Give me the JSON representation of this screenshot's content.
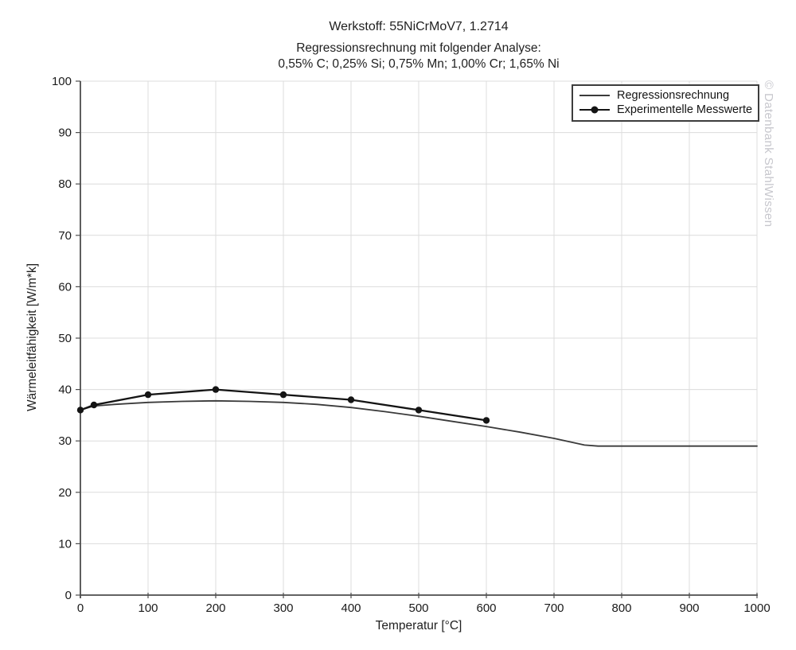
{
  "header": {
    "title": "Werkstoff: 55NiCrMoV7, 1.2714",
    "subtitle1": "Regressionsrechnung mit folgender Analyse:",
    "subtitle2": "0,55% C; 0,25% Si; 0,75% Mn; 1,00% Cr; 1,65% Ni"
  },
  "watermark": "© Datenbank StahlWissen",
  "legend": {
    "position": "top-right",
    "items": [
      {
        "label": "Regressionsrechnung",
        "marker": "line"
      },
      {
        "label": "Experimentelle Messwerte",
        "marker": "line-circle"
      }
    ]
  },
  "colors": {
    "regression_line": "#3a3a3a",
    "experimental_line": "#141414",
    "gridline": "#dcdcdc",
    "axis": "#4d4d4d",
    "text": "#1a1a1a",
    "watermark": "#c7c7cd",
    "background": "#ffffff"
  },
  "chart_data": {
    "type": "line",
    "title": "Werkstoff: 55NiCrMoV7, 1.2714",
    "subtitle": "Regressionsrechnung mit folgender Analyse: 0,55% C; 0,25% Si; 0,75% Mn; 1,00% Cr; 1,65% Ni",
    "xlabel": "Temperatur [°C]",
    "ylabel": "Wärmeleitfähigkeit [W/m*k]",
    "xlim": [
      0,
      1000
    ],
    "ylim": [
      0,
      100
    ],
    "xticks": [
      0,
      100,
      200,
      300,
      400,
      500,
      600,
      700,
      800,
      900,
      1000
    ],
    "yticks": [
      0,
      10,
      20,
      30,
      40,
      50,
      60,
      70,
      80,
      90,
      100
    ],
    "grid": true,
    "legend_position": "top-right",
    "series": [
      {
        "name": "Regressionsrechnung",
        "color": "#3a3a3a",
        "stroke_width": 1.8,
        "marker": null,
        "x": [
          0,
          20,
          50,
          100,
          150,
          200,
          250,
          300,
          350,
          400,
          450,
          500,
          550,
          600,
          650,
          700,
          745,
          765,
          800,
          850,
          900,
          950,
          1000
        ],
        "y": [
          36.0,
          36.8,
          37.1,
          37.5,
          37.7,
          37.8,
          37.7,
          37.5,
          37.1,
          36.5,
          35.7,
          34.8,
          33.8,
          32.8,
          31.7,
          30.5,
          29.2,
          29.0,
          29.0,
          29.0,
          29.0,
          29.0,
          29.0
        ]
      },
      {
        "name": "Experimentelle Messwerte",
        "color": "#141414",
        "stroke_width": 2.3,
        "marker": "circle",
        "marker_size": 4.2,
        "x": [
          0,
          20,
          100,
          200,
          300,
          400,
          500,
          600
        ],
        "y": [
          36,
          37,
          39,
          40,
          39,
          38,
          36,
          34
        ]
      }
    ]
  }
}
